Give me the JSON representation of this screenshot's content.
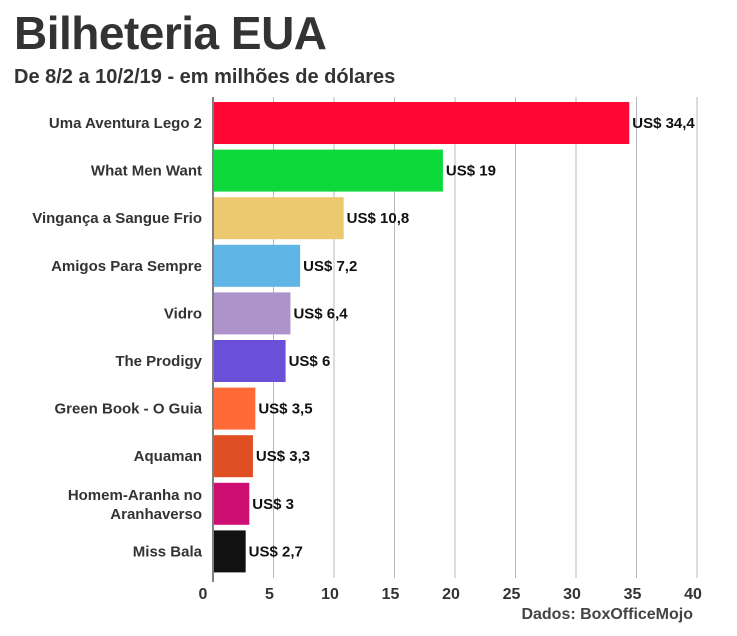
{
  "title": "Bilheteria EUA",
  "subtitle": "De 8/2 a 10/2/19 - em milhões de dólares",
  "source": "Dados: BoxOfficeMojo",
  "chart_data": {
    "type": "bar",
    "orientation": "horizontal",
    "categories": [
      "Uma Aventura Lego 2",
      "What Men Want",
      "Vingança a Sangue Frio",
      "Amigos Para Sempre",
      "Vidro",
      "The Prodigy",
      "Green Book - O Guia",
      "Aquaman",
      "Homem-Aranha no Aranhaverso",
      "Miss Bala"
    ],
    "values": [
      34.4,
      19,
      10.8,
      7.2,
      6.4,
      6,
      3.5,
      3.3,
      3,
      2.7
    ],
    "value_labels": [
      "US$ 34,4",
      "US$ 19",
      "US$ 10,8",
      "US$ 7,2",
      "US$ 6,4",
      "US$ 6",
      "US$ 3,5",
      "US$ 3,3",
      "US$ 3",
      "US$ 2,7"
    ],
    "colors": [
      "#ff0732",
      "#0dd93a",
      "#ecc96f",
      "#5fb6e4",
      "#ad93c9",
      "#6a4fd9",
      "#ff6b38",
      "#e04e24",
      "#cf0e74",
      "#111111"
    ],
    "xlim": [
      0,
      40
    ],
    "xticks": [
      0,
      5,
      10,
      15,
      20,
      25,
      30,
      35,
      40
    ],
    "grid": true,
    "xlabel": "",
    "ylabel": ""
  }
}
